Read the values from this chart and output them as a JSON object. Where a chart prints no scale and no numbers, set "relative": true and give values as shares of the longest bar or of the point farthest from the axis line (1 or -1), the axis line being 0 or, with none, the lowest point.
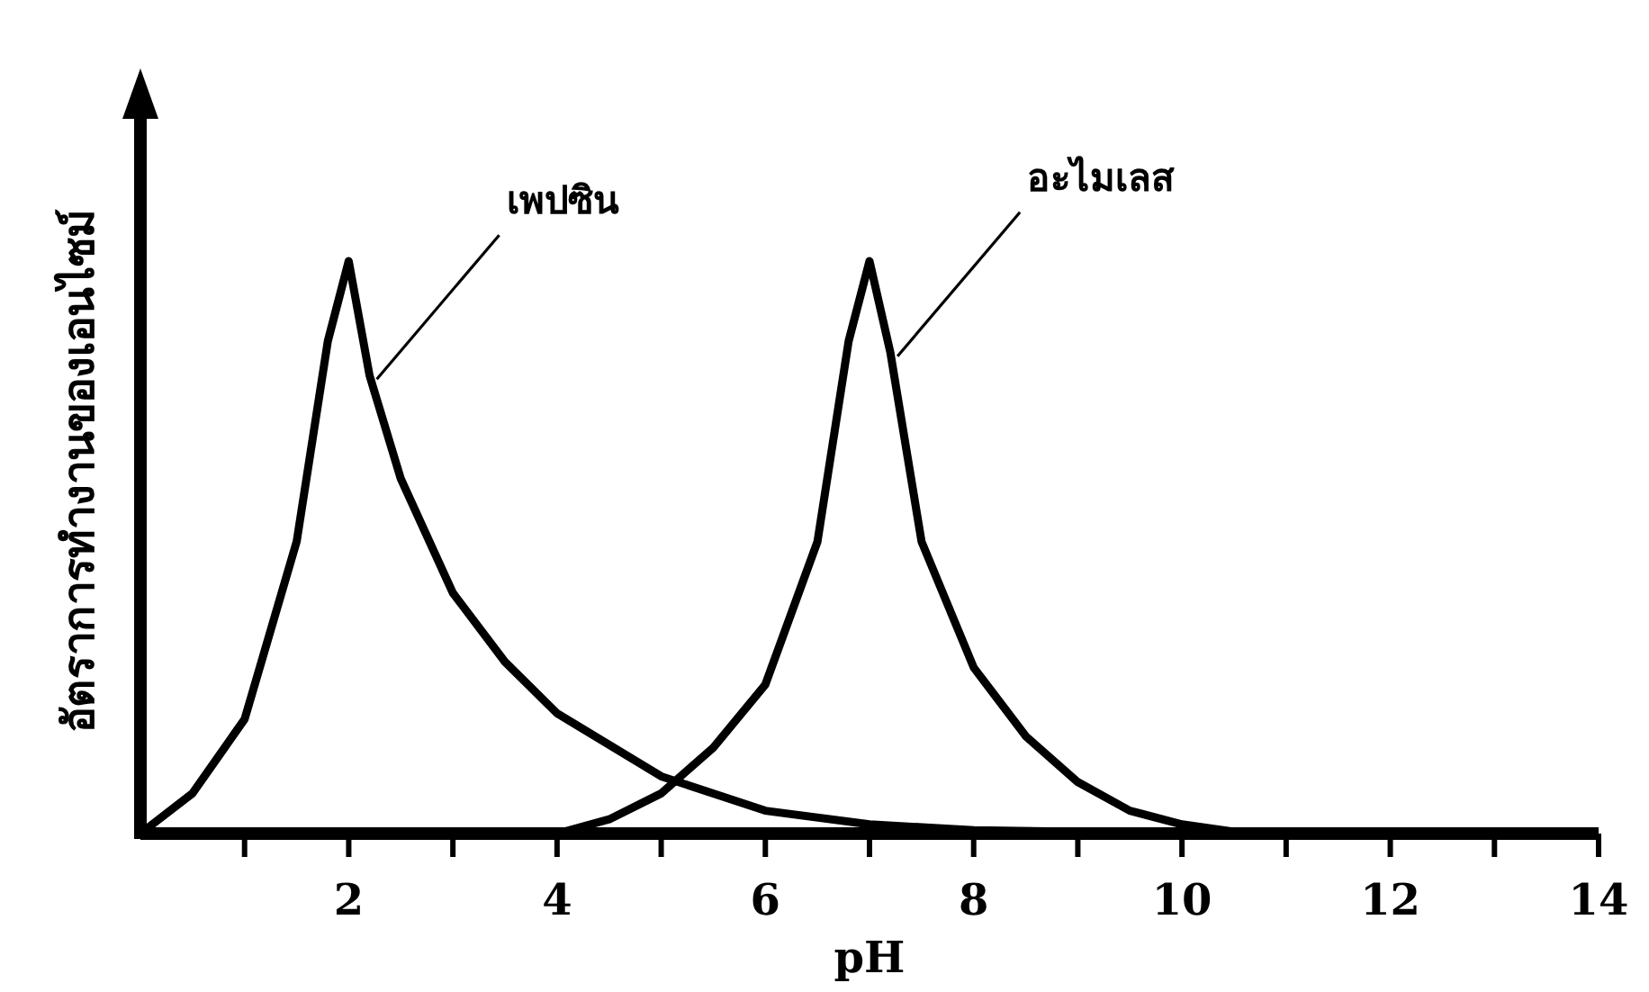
{
  "chart_data": {
    "type": "line",
    "relative": true,
    "xlabel": "pH",
    "ylabel": "อัตราการทำงานของเอนไซม์",
    "xlim": [
      0,
      14
    ],
    "xticks": [
      {
        "value": 1,
        "label": null
      },
      2,
      {
        "value": 3,
        "label": null
      },
      4,
      {
        "value": 5,
        "label": null
      },
      6,
      {
        "value": 7,
        "label": null
      },
      8,
      {
        "value": 9,
        "label": null
      },
      10,
      {
        "value": 11,
        "label": null
      },
      12,
      {
        "value": 13,
        "label": null
      },
      14
    ],
    "tick_labels": "x",
    "grid": false,
    "marker": "none",
    "line_style": "solid",
    "series": [
      {
        "name": "เพปซิน",
        "color": "#000000",
        "x": [
          0,
          0.5,
          1,
          1.5,
          1.8,
          2,
          2.2,
          2.5,
          3,
          3.5,
          4,
          5,
          6,
          7,
          8,
          9,
          10.5
        ],
        "values": [
          0,
          0.07,
          0.2,
          0.51,
          0.86,
          1,
          0.8,
          0.62,
          0.42,
          0.3,
          0.21,
          0.1,
          0.04,
          0.016,
          0.006,
          0.003,
          0
        ]
      },
      {
        "name": "อะไมเลส",
        "color": "#000000",
        "x": [
          4,
          4.5,
          5,
          5.5,
          6,
          6.5,
          6.8,
          7,
          7.2,
          7.5,
          8,
          8.5,
          9,
          9.5,
          10,
          10.5,
          11
        ],
        "values": [
          0,
          0.025,
          0.07,
          0.15,
          0.26,
          0.51,
          0.86,
          1,
          0.84,
          0.51,
          0.29,
          0.17,
          0.09,
          0.04,
          0.016,
          0.003,
          0
        ]
      }
    ]
  }
}
